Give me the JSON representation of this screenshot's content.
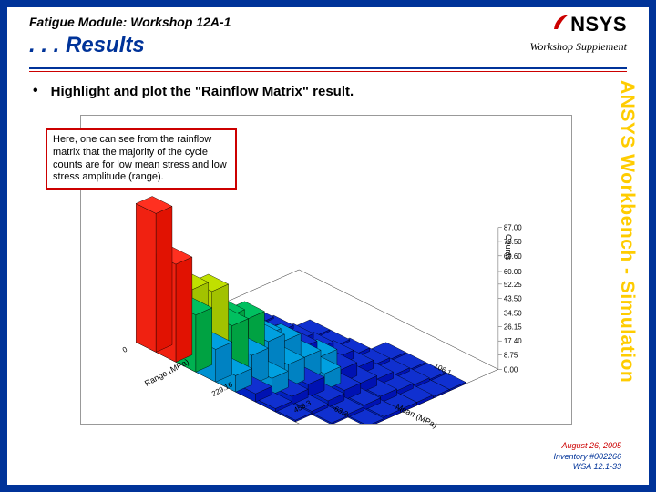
{
  "header": {
    "supertitle": "Fatigue Module: Workshop 12A-1",
    "title": ". . . Results",
    "supplement": "Workshop Supplement",
    "logo_text": "NSYS",
    "logo_swoosh_color": "#cc0000"
  },
  "bullet": {
    "marker": "•",
    "text": "Highlight and plot the \"Rainflow Matrix\" result."
  },
  "callout": {
    "text": "Here, one can see from the rainflow matrix that the majority of the cycle counts are for low mean stress and low stress amplitude (range)."
  },
  "side_label": "ANSYS Workbench - Simulation",
  "footer": {
    "date": "August 26, 2005",
    "inventory": "Inventory #002266",
    "code": "WSA 12.1-33"
  },
  "chart": {
    "type": "3d-bar",
    "background_color": "#ffffff",
    "border_color": "#999999",
    "x_axis": {
      "label": "Range (MPa)",
      "ticks": [
        "0",
        "229.16",
        "458.3"
      ]
    },
    "y_axis": {
      "label": "Mean (MPa)",
      "ticks": [
        "-63.2",
        "106.1"
      ]
    },
    "z_axis": {
      "label": "Counts",
      "ticks": [
        "0.00",
        "8.75",
        "17.40",
        "26.15",
        "34.50",
        "43.50",
        "52.25",
        "60.00",
        "69.60",
        "78.50",
        "87.00"
      ]
    },
    "palette": {
      "low": "#1030d0",
      "mid_low": "#00a0e0",
      "mid": "#00c060",
      "mid_high": "#c0e000",
      "high": "#ff3020"
    },
    "cube_edge": "#000000",
    "grid": [
      [
        85,
        30,
        12,
        5,
        2,
        0,
        0,
        0,
        0,
        0
      ],
      [
        60,
        40,
        18,
        8,
        3,
        1,
        0,
        0,
        0,
        0
      ],
      [
        35,
        45,
        25,
        12,
        5,
        2,
        0,
        0,
        0,
        0
      ],
      [
        20,
        30,
        30,
        15,
        7,
        3,
        1,
        0,
        0,
        0
      ],
      [
        10,
        18,
        22,
        18,
        9,
        4,
        1,
        0,
        0,
        0
      ],
      [
        5,
        10,
        14,
        14,
        10,
        5,
        2,
        0,
        0,
        0
      ],
      [
        2,
        5,
        8,
        10,
        8,
        5,
        2,
        1,
        0,
        0
      ],
      [
        1,
        2,
        4,
        6,
        6,
        4,
        2,
        1,
        0,
        0
      ],
      [
        0,
        1,
        2,
        3,
        4,
        3,
        2,
        1,
        0,
        0
      ],
      [
        0,
        0,
        1,
        2,
        2,
        2,
        1,
        1,
        0,
        0
      ]
    ]
  }
}
